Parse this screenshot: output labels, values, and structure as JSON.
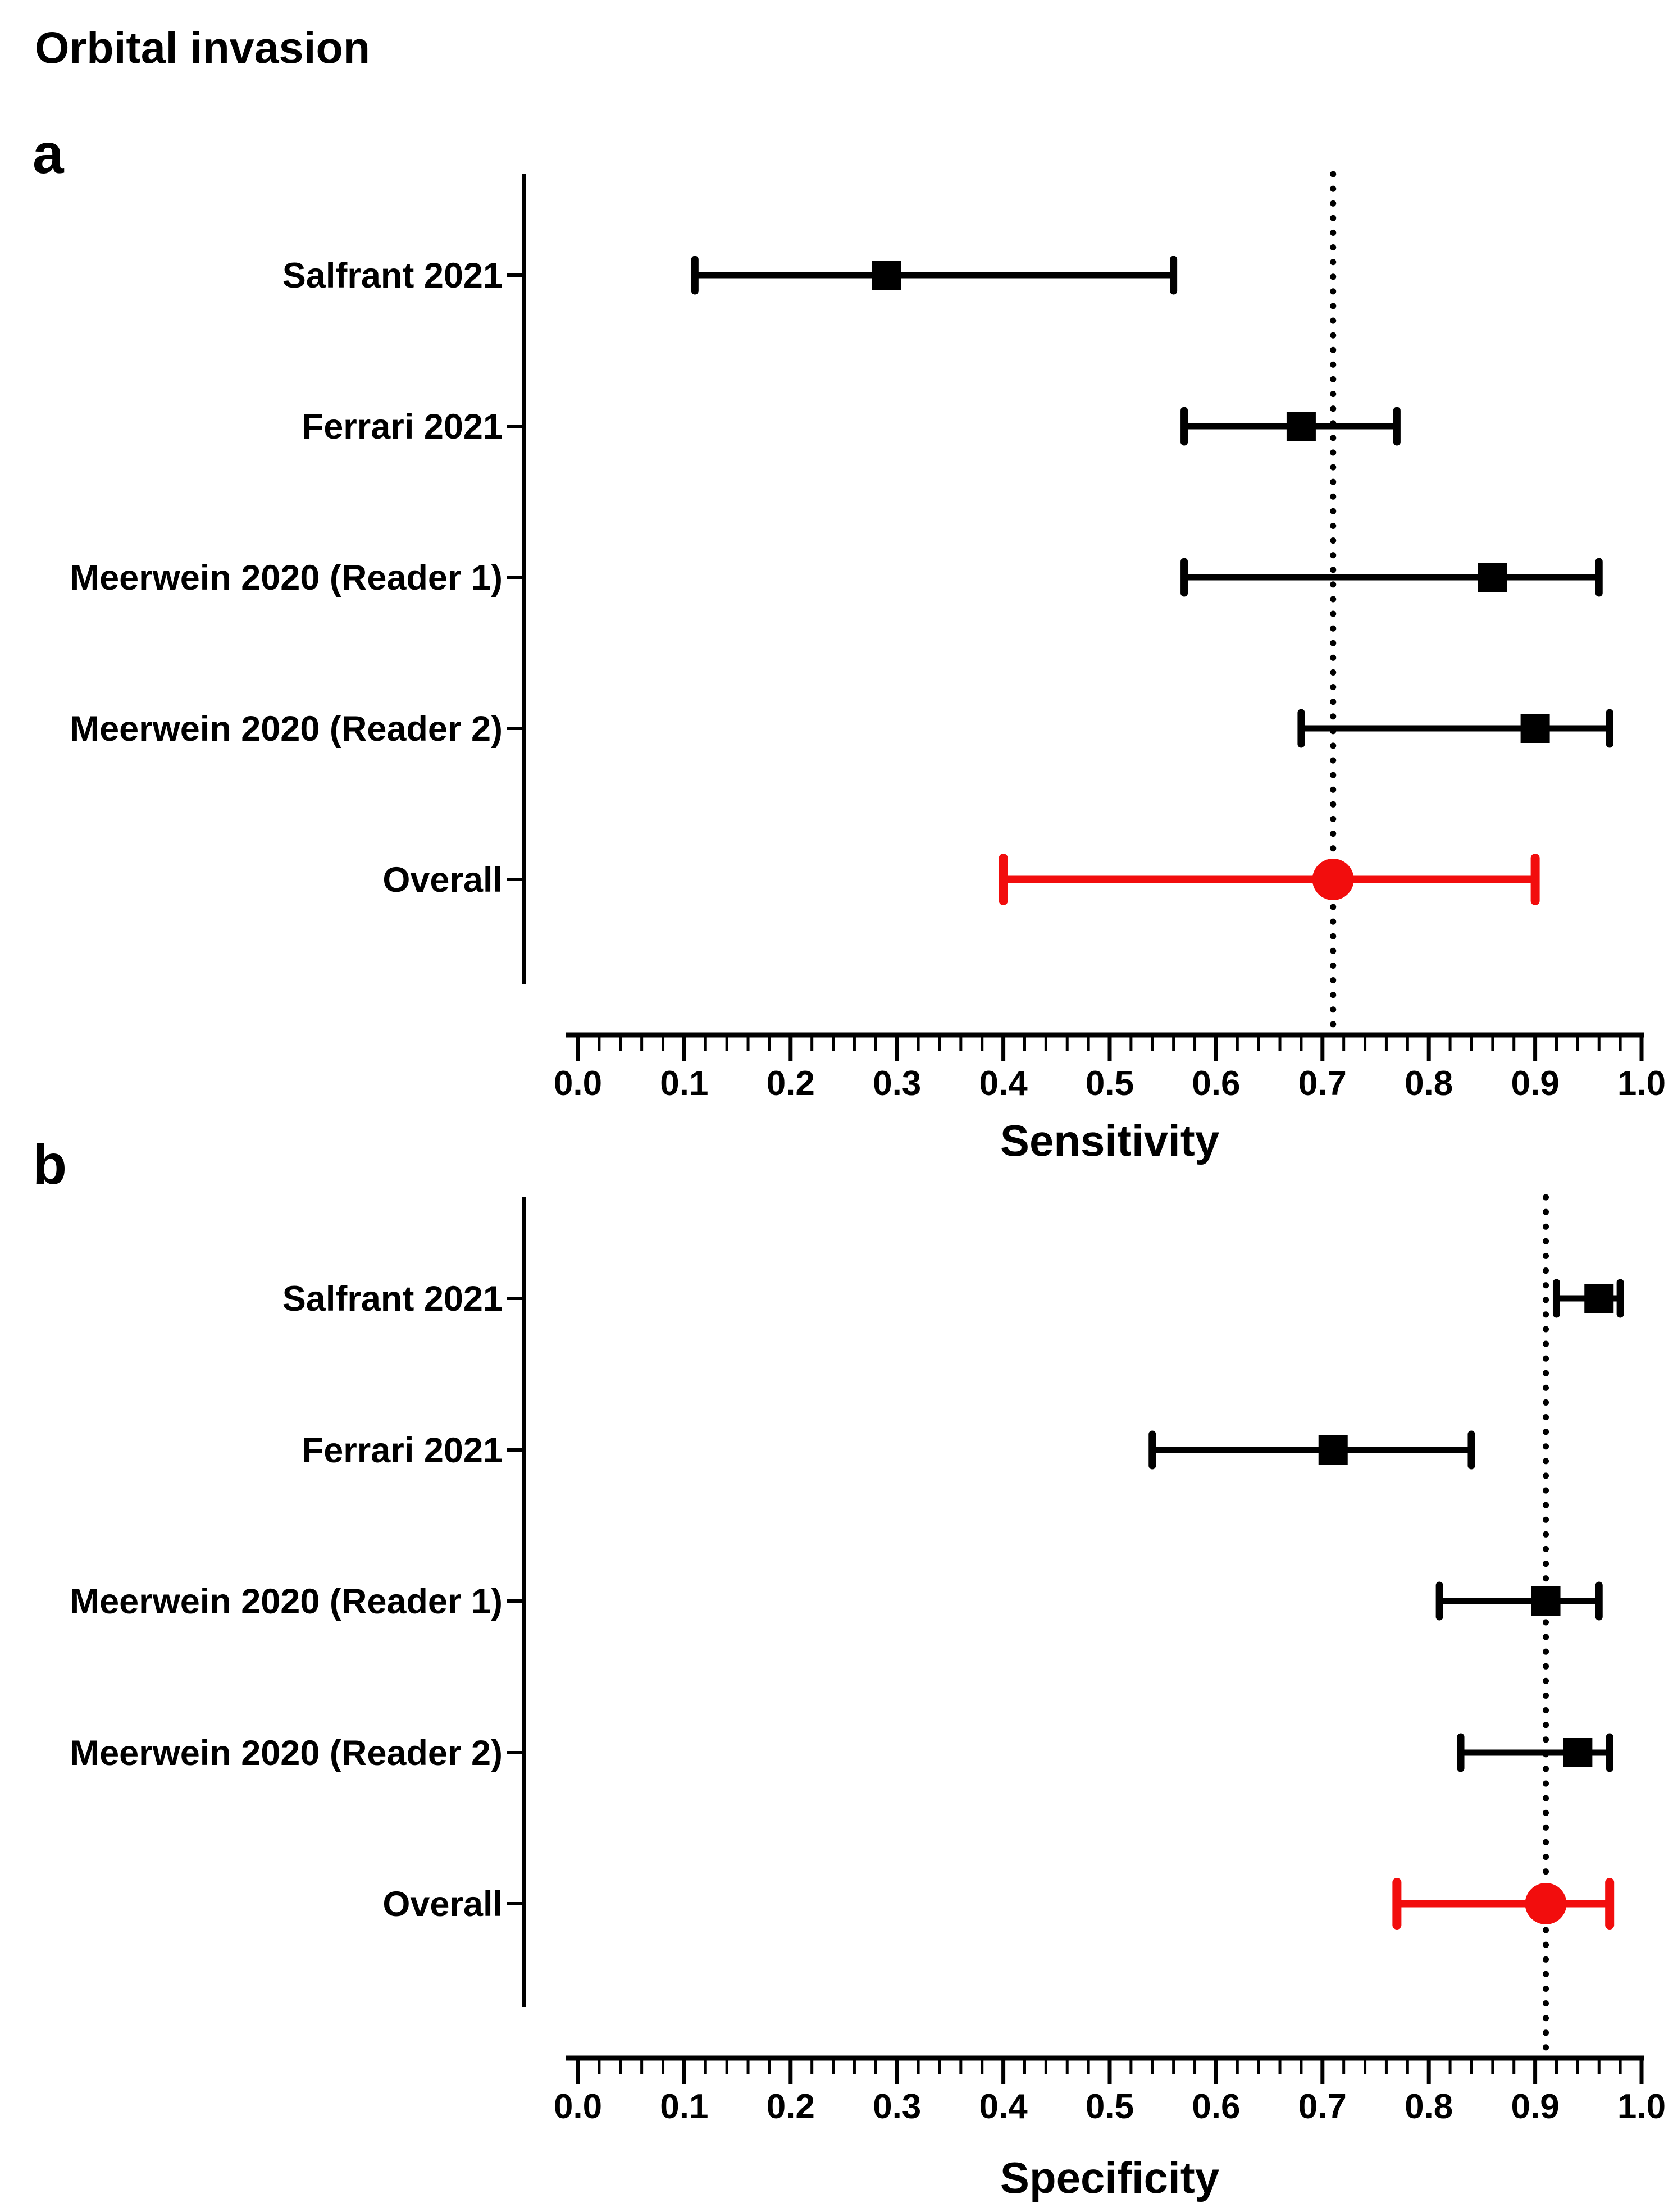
{
  "figure": {
    "title": "Orbital invasion"
  },
  "chart_data": {
    "type": "forest",
    "title": "Orbital invasion",
    "orientation": "horizontal",
    "legend": "none",
    "grid": false,
    "colors": {
      "study_marker": "#000000",
      "summary_marker": "#f20d0d",
      "axis": "#000000"
    },
    "panels": [
      {
        "label": "a",
        "xlabel": "Sensitivity",
        "axis": {
          "min": 0,
          "max": 1,
          "major_step": 0.1,
          "minor_step": 0.02,
          "tick_labels": [
            "0.0",
            "0.1",
            "0.2",
            "0.3",
            "0.4",
            "0.5",
            "0.6",
            "0.7",
            "0.8",
            "0.9",
            "1.0"
          ]
        },
        "reference_line": 0.71,
        "studies": [
          {
            "name": "Salfrant 2021",
            "estimate": 0.29,
            "ci_lower": 0.11,
            "ci_upper": 0.56,
            "summary": false
          },
          {
            "name": "Ferrari 2021",
            "estimate": 0.68,
            "ci_lower": 0.57,
            "ci_upper": 0.77,
            "summary": false
          },
          {
            "name": "Meerwein 2020 (Reader 1)",
            "estimate": 0.86,
            "ci_lower": 0.57,
            "ci_upper": 0.96,
            "summary": false
          },
          {
            "name": "Meerwein 2020 (Reader 2)",
            "estimate": 0.9,
            "ci_lower": 0.68,
            "ci_upper": 0.97,
            "summary": false
          },
          {
            "name": "Overall",
            "estimate": 0.71,
            "ci_lower": 0.4,
            "ci_upper": 0.9,
            "summary": true
          }
        ]
      },
      {
        "label": "b",
        "xlabel": "Specificity",
        "axis": {
          "min": 0,
          "max": 1,
          "major_step": 0.1,
          "minor_step": 0.02,
          "tick_labels": [
            "0.0",
            "0.1",
            "0.2",
            "0.3",
            "0.4",
            "0.5",
            "0.6",
            "0.7",
            "0.8",
            "0.9",
            "1.0"
          ]
        },
        "reference_line": 0.91,
        "studies": [
          {
            "name": "Salfrant 2021",
            "estimate": 0.96,
            "ci_lower": 0.92,
            "ci_upper": 0.98,
            "summary": false
          },
          {
            "name": "Ferrari 2021",
            "estimate": 0.71,
            "ci_lower": 0.54,
            "ci_upper": 0.84,
            "summary": false
          },
          {
            "name": "Meerwein 2020 (Reader 1)",
            "estimate": 0.91,
            "ci_lower": 0.81,
            "ci_upper": 0.96,
            "summary": false
          },
          {
            "name": "Meerwein 2020 (Reader 2)",
            "estimate": 0.94,
            "ci_lower": 0.83,
            "ci_upper": 0.97,
            "summary": false
          },
          {
            "name": "Overall",
            "estimate": 0.91,
            "ci_lower": 0.77,
            "ci_upper": 0.97,
            "summary": true
          }
        ]
      }
    ]
  }
}
